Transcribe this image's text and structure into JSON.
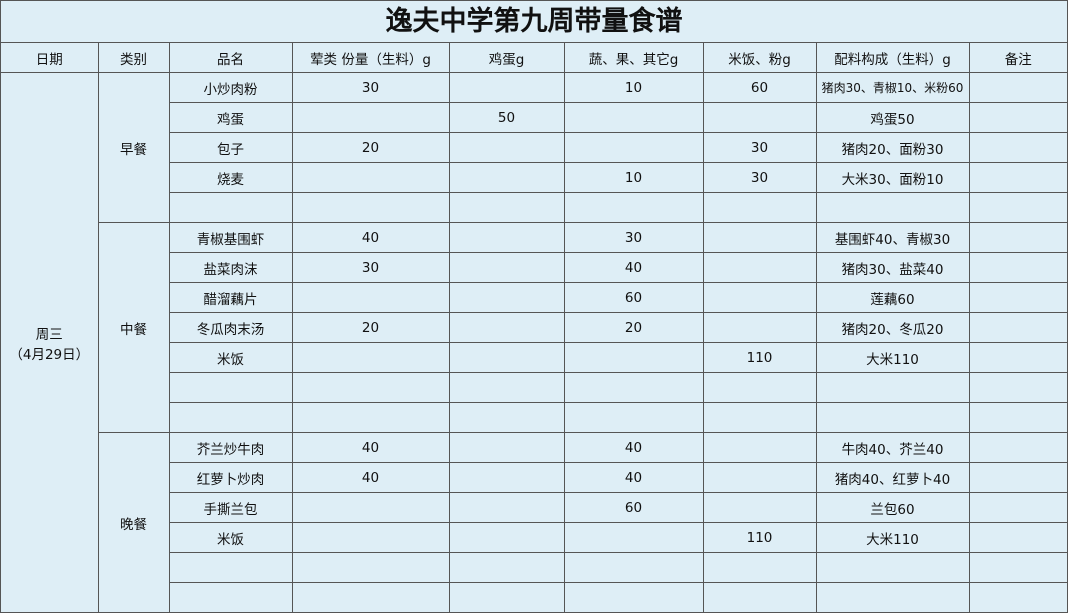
{
  "header": {
    "title": "逸夫中学第九周带量食谱"
  },
  "table": {
    "columns": [
      "日期",
      "类别",
      "品名",
      "荤类 份量（生料）g",
      "鸡蛋g",
      "蔬、果、其它g",
      "米饭、粉g",
      "配料构成（生料）g",
      "备注"
    ],
    "date": {
      "day": "周三",
      "date": "（4月29日）"
    },
    "meals": [
      {
        "name": "早餐",
        "rows": [
          [
            "小炒肉粉",
            30,
            null,
            10,
            60,
            "猪肉30、青椒10、米粉60",
            null
          ],
          [
            "鸡蛋",
            null,
            50,
            null,
            null,
            "鸡蛋50",
            null
          ],
          [
            "包子",
            20,
            null,
            null,
            30,
            "猪肉20、面粉30",
            null
          ],
          [
            "烧麦",
            null,
            null,
            10,
            30,
            "大米30、面粉10",
            null
          ],
          null
        ]
      },
      {
        "name": "中餐",
        "rows": [
          [
            "青椒基围虾",
            40,
            null,
            30,
            null,
            "基围虾40、青椒30",
            null
          ],
          [
            "盐菜肉沫",
            30,
            null,
            40,
            null,
            "猪肉30、盐菜40",
            null
          ],
          [
            "醋溜藕片",
            null,
            null,
            60,
            null,
            "莲藕60",
            null
          ],
          [
            "冬瓜肉末汤",
            20,
            null,
            20,
            null,
            "猪肉20、冬瓜20",
            null
          ],
          [
            "米饭",
            null,
            null,
            null,
            110,
            "大米110",
            null
          ],
          null,
          null
        ]
      },
      {
        "name": "晚餐",
        "rows": [
          [
            "芥兰炒牛肉",
            40,
            null,
            40,
            null,
            "牛肉40、芥兰40",
            null
          ],
          [
            "红萝卜炒肉",
            40,
            null,
            40,
            null,
            "猪肉40、红萝卜40",
            null
          ],
          [
            "手撕兰包",
            null,
            null,
            60,
            null,
            "兰包60",
            null
          ],
          [
            "米饭",
            null,
            null,
            null,
            110,
            "大米110",
            null
          ],
          null,
          null
        ]
      }
    ]
  }
}
